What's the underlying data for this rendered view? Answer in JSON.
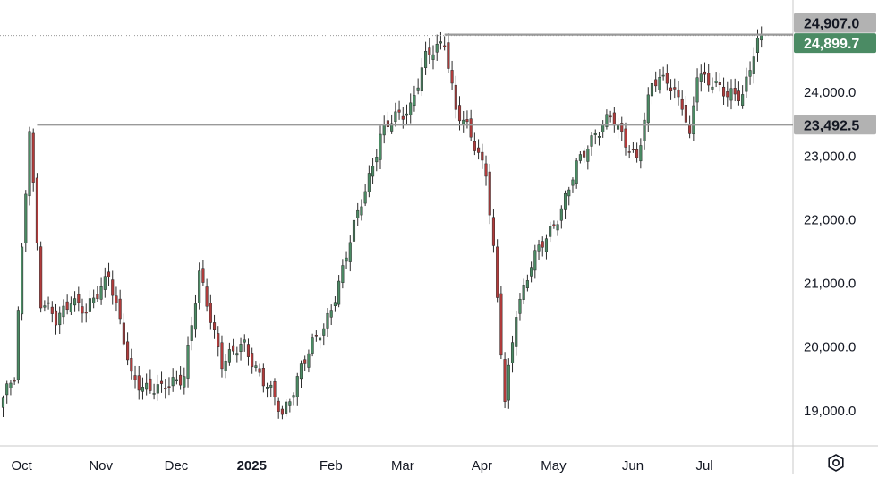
{
  "chart_data": {
    "type": "candlestick",
    "title": "",
    "colors": {
      "up": "#4b8b64",
      "down": "#b13b3b",
      "level_line": "#9a9a9a",
      "last_price_badge": "#4b8b64",
      "level_badge": "#b2b2b2"
    },
    "y_axis": {
      "ticks": [
        19000,
        20000,
        21000,
        22000,
        23000,
        24000
      ],
      "tick_labels": [
        "19,000.0",
        "20,000.0",
        "21,000.0",
        "22,000.0",
        "23,000.0",
        "24,000.0"
      ],
      "ylim": [
        18450,
        25450
      ]
    },
    "x_axis": {
      "labels": [
        "Oct",
        "Nov",
        "Dec",
        "2025",
        "Feb",
        "Mar",
        "Apr",
        "May",
        "Jun",
        "Jul"
      ],
      "bold_labels": [
        "2025"
      ],
      "label_candle_index": [
        3,
        24,
        44,
        64,
        85,
        104,
        125,
        144,
        165,
        184
      ]
    },
    "price_badges": [
      {
        "value": 24907.0,
        "label": "24,907.0",
        "style": "level"
      },
      {
        "value": 24899.7,
        "label": "24,899.7",
        "style": "last"
      },
      {
        "value": 23492.5,
        "label": "23,492.5",
        "style": "level"
      }
    ],
    "horizontal_levels": [
      {
        "value": 24907.0,
        "from_index": 117
      },
      {
        "value": 23492.5,
        "from_index": 9
      }
    ],
    "last_price_line": {
      "value": 24899.7
    },
    "anchors": [
      [
        0,
        19200
      ],
      [
        3,
        19500
      ],
      [
        7,
        23500
      ],
      [
        10,
        20700
      ],
      [
        14,
        20400
      ],
      [
        18,
        20800
      ],
      [
        22,
        20500
      ],
      [
        28,
        21200
      ],
      [
        34,
        19500
      ],
      [
        42,
        19300
      ],
      [
        48,
        19600
      ],
      [
        52,
        21100
      ],
      [
        58,
        19800
      ],
      [
        64,
        20000
      ],
      [
        70,
        19400
      ],
      [
        74,
        18900
      ],
      [
        79,
        19700
      ],
      [
        85,
        20300
      ],
      [
        90,
        21200
      ],
      [
        95,
        22300
      ],
      [
        100,
        23300
      ],
      [
        104,
        23600
      ],
      [
        108,
        23800
      ],
      [
        112,
        24500
      ],
      [
        117,
        24850
      ],
      [
        120,
        23700
      ],
      [
        124,
        23300
      ],
      [
        128,
        22800
      ],
      [
        130,
        21500
      ],
      [
        131,
        20700
      ],
      [
        133,
        19100
      ],
      [
        136,
        20600
      ],
      [
        140,
        21300
      ],
      [
        144,
        21700
      ],
      [
        148,
        22200
      ],
      [
        152,
        22800
      ],
      [
        157,
        23400
      ],
      [
        161,
        23600
      ],
      [
        164,
        23300
      ],
      [
        168,
        23000
      ],
      [
        172,
        24100
      ],
      [
        176,
        24250
      ],
      [
        180,
        23800
      ],
      [
        182,
        23200
      ],
      [
        184,
        24300
      ],
      [
        188,
        24200
      ],
      [
        192,
        23900
      ],
      [
        196,
        24000
      ],
      [
        199,
        24650
      ],
      [
        201,
        24899.7
      ]
    ]
  },
  "ui": {
    "settings_icon": "settings-hex-icon"
  }
}
